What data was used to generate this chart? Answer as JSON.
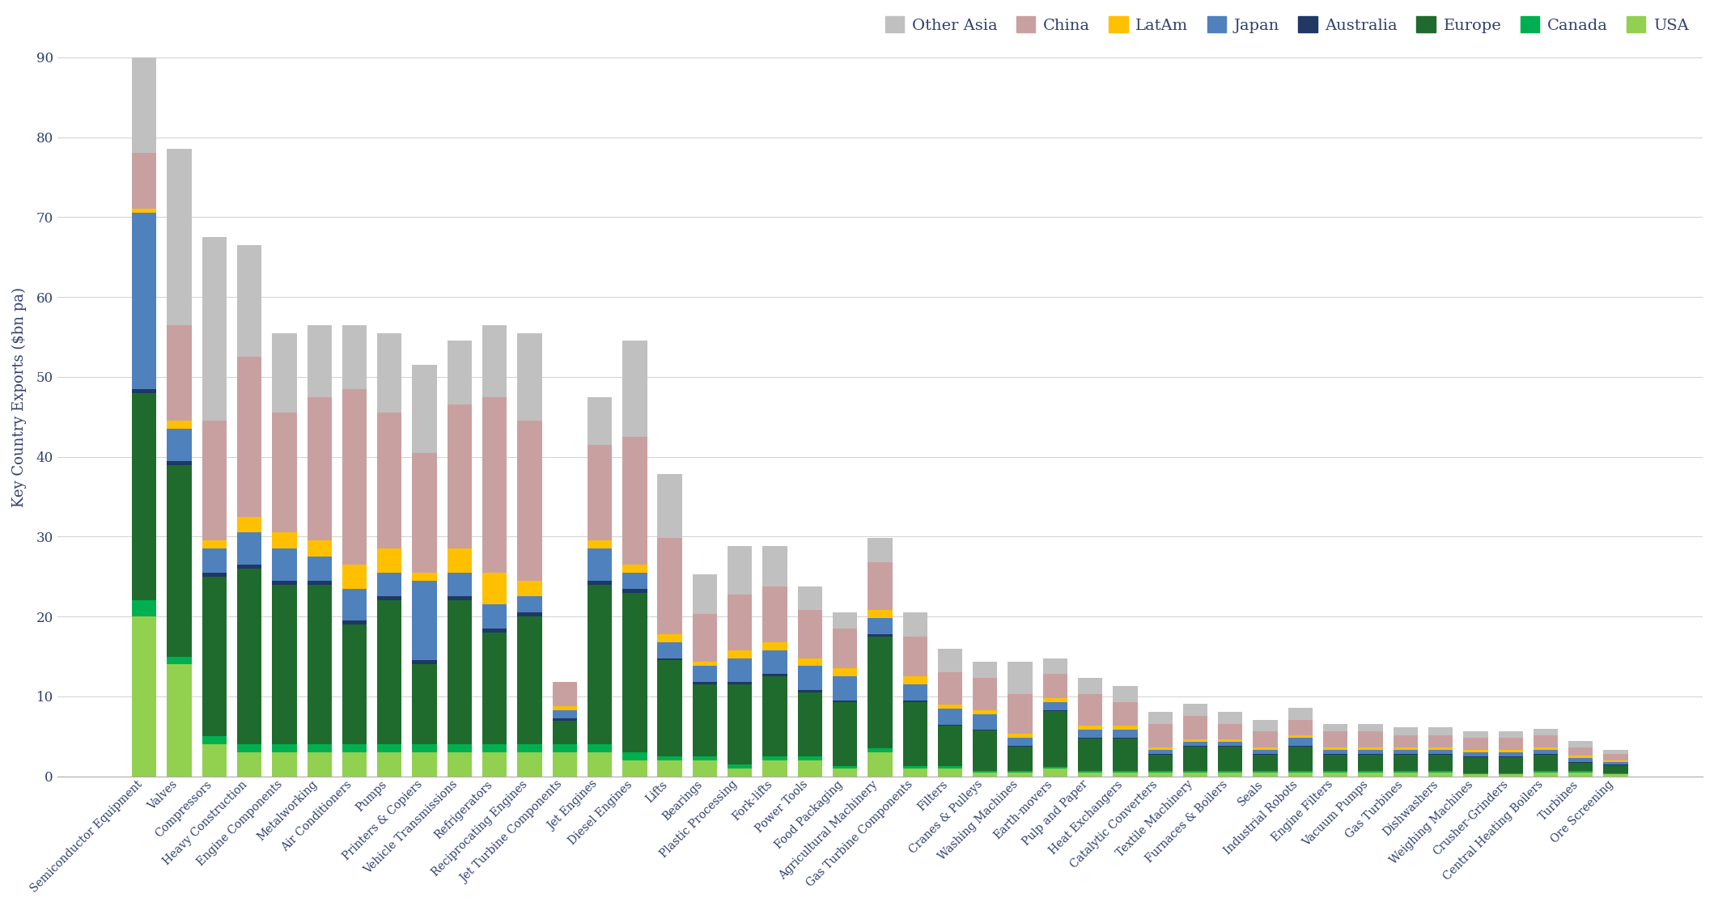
{
  "categories": [
    "Semiconductor Equipment",
    "Valves",
    "Compressors",
    "Heavy Construction",
    "Engine Components",
    "Metalworking",
    "Air Conditioners",
    "Pumps",
    "Printers & Copiers",
    "Vehicle Transmissions",
    "Refrigerators",
    "Reciprocating Engines",
    "Jet Turbine Components",
    "Jet Engines",
    "Diesel Engines",
    "Lifts",
    "Bearings",
    "Plastic Processing",
    "Fork-lifts",
    "Power Tools",
    "Food Packaging",
    "Agricultural Machinery",
    "Gas Turbine Components",
    "Filters",
    "Cranes & Pulleys",
    "Washing Machines",
    "Earth-movers",
    "Pulp and Paper",
    "Heat Exchangers",
    "Catalytic Converters",
    "Textile Machinery",
    "Furnaces & Boilers",
    "Seals",
    "Industrial Robots",
    "Engine Filters",
    "Vacuum Pumps",
    "Gas Turbines",
    "Dishwashers",
    "Weighing Machines",
    "Crusher-Grinders",
    "Central Heating Boilers",
    "Turbines",
    "Ore Screening"
  ],
  "stack_order": [
    "USA",
    "Canada",
    "Europe",
    "Australia",
    "Japan",
    "LatAm",
    "China",
    "Other Asia"
  ],
  "stacked_data": {
    "USA": [
      20,
      14,
      4,
      3,
      3,
      3,
      3,
      3,
      3,
      3,
      3,
      3,
      3,
      3,
      2,
      2,
      2,
      1,
      2,
      2,
      1,
      3,
      1,
      1,
      0.5,
      0.5,
      1,
      0.5,
      0.5,
      0.5,
      0.5,
      0.5,
      0.5,
      0.5,
      0.5,
      0.5,
      0.5,
      0.5,
      0.3,
      0.3,
      0.5,
      0.5,
      0.3
    ],
    "Canada": [
      2,
      1,
      1,
      1,
      1,
      1,
      1,
      1,
      1,
      1,
      1,
      1,
      1,
      1,
      1,
      0.5,
      0.5,
      0.5,
      0.5,
      0.5,
      0.3,
      0.5,
      0.3,
      0.3,
      0.2,
      0.2,
      0.2,
      0.2,
      0.2,
      0.2,
      0.2,
      0.2,
      0.2,
      0.2,
      0.2,
      0.2,
      0.2,
      0.2,
      0.1,
      0.1,
      0.2,
      0.2,
      0.1
    ],
    "Europe": [
      26,
      24,
      20,
      22,
      20,
      20,
      15,
      18,
      10,
      18,
      14,
      16,
      3,
      20,
      20,
      12,
      9,
      10,
      10,
      8,
      8,
      14,
      8,
      5,
      5,
      3,
      7,
      4,
      4,
      2,
      3,
      3,
      2,
      3,
      2,
      2,
      2,
      2,
      2,
      2,
      2,
      1,
      1
    ],
    "Australia": [
      0.5,
      0.5,
      0.5,
      0.5,
      0.5,
      0.5,
      0.5,
      0.5,
      0.5,
      0.5,
      0.5,
      0.5,
      0.3,
      0.5,
      0.5,
      0.3,
      0.3,
      0.3,
      0.3,
      0.3,
      0.2,
      0.3,
      0.2,
      0.2,
      0.1,
      0.1,
      0.1,
      0.1,
      0.1,
      0.1,
      0.1,
      0.1,
      0.1,
      0.1,
      0.1,
      0.1,
      0.1,
      0.1,
      0.1,
      0.1,
      0.1,
      0.1,
      0.1
    ],
    "Japan": [
      22,
      4,
      3,
      4,
      4,
      3,
      4,
      3,
      10,
      3,
      3,
      2,
      1,
      4,
      2,
      2,
      2,
      3,
      3,
      3,
      3,
      2,
      2,
      2,
      2,
      1,
      1,
      1,
      1,
      0.5,
      0.5,
      0.5,
      0.5,
      1,
      0.5,
      0.5,
      0.5,
      0.5,
      0.5,
      0.5,
      0.5,
      0.5,
      0.3
    ],
    "LatAm": [
      0.5,
      1,
      1,
      2,
      2,
      2,
      3,
      3,
      1,
      3,
      4,
      2,
      0.5,
      1,
      1,
      1,
      0.5,
      1,
      1,
      1,
      1,
      1,
      1,
      0.5,
      0.5,
      0.5,
      0.5,
      0.5,
      0.5,
      0.3,
      0.3,
      0.3,
      0.3,
      0.3,
      0.3,
      0.3,
      0.3,
      0.3,
      0.3,
      0.3,
      0.3,
      0.3,
      0.2
    ],
    "China": [
      7,
      12,
      15,
      20,
      15,
      18,
      22,
      17,
      15,
      18,
      22,
      20,
      3,
      12,
      16,
      12,
      6,
      7,
      7,
      6,
      5,
      6,
      5,
      4,
      4,
      5,
      3,
      4,
      3,
      3,
      3,
      2,
      2,
      2,
      2,
      2,
      1.5,
      1.5,
      1.5,
      1.5,
      1.5,
      1,
      0.8
    ],
    "Other Asia": [
      12,
      22,
      23,
      14,
      10,
      9,
      8,
      10,
      11,
      8,
      9,
      11,
      0,
      6,
      12,
      8,
      5,
      6,
      5,
      3,
      2,
      3,
      3,
      3,
      2,
      4,
      2,
      2,
      2,
      1.5,
      1.5,
      1.5,
      1.5,
      1.5,
      1,
      1,
      1,
      1,
      0.8,
      0.8,
      0.8,
      0.8,
      0.5
    ]
  },
  "colors": {
    "USA": "#92d050",
    "Canada": "#00b050",
    "Europe": "#1f6b2e",
    "Australia": "#1f3864",
    "Japan": "#4f81bd",
    "LatAm": "#ffc000",
    "China": "#c9a0a0",
    "Other Asia": "#c0c0c0"
  },
  "legend_order": [
    "Other Asia",
    "China",
    "LatAm",
    "Japan",
    "Australia",
    "Europe",
    "Canada",
    "USA"
  ],
  "ylabel": "Key Country Exports ($bn pa)",
  "ylim": [
    0,
    95
  ],
  "yticks": [
    0,
    10,
    20,
    30,
    40,
    50,
    60,
    70,
    80,
    90
  ],
  "axis_color": "#2e3f6e"
}
